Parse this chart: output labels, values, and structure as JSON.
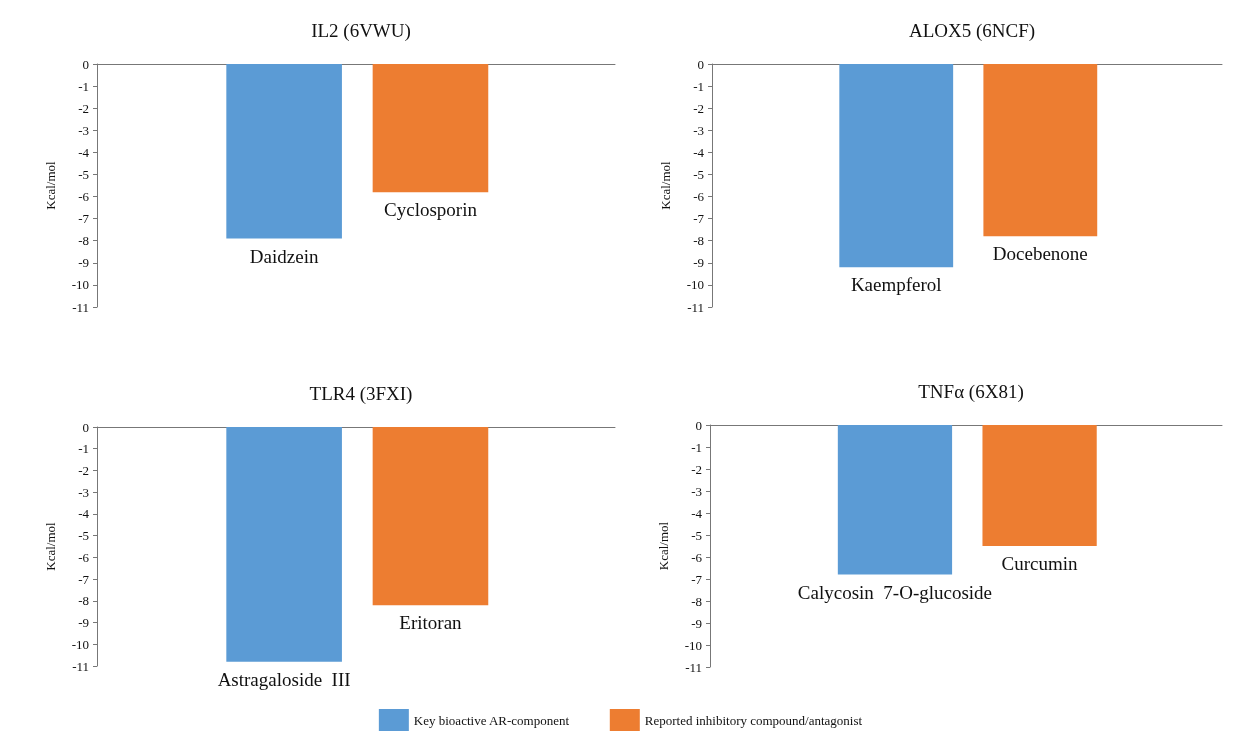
{
  "chart_data": [
    {
      "type": "bar",
      "title": "IL2 (6VWU)",
      "ylabel": "Kcal/mol",
      "categories": [
        "Daidzein",
        "Cyclosporin"
      ],
      "series": [
        {
          "color": "#5b9bd5",
          "values": [
            -7.9,
            null
          ]
        },
        {
          "color": "#ed7d31",
          "values": [
            null,
            -5.8
          ]
        }
      ],
      "ylim": [
        -11,
        0
      ],
      "yticks": [
        0,
        -1,
        -2,
        -3,
        -4,
        -5,
        -6,
        -7,
        -8,
        -9,
        -10,
        -11
      ],
      "tick_labels": "y",
      "grid": false,
      "legend": false
    },
    {
      "type": "bar",
      "title": "ALOX5 (6NCF)",
      "ylabel": "Kcal/mol",
      "categories": [
        "Kaempferol",
        "Docebenone"
      ],
      "series": [
        {
          "color": "#5b9bd5",
          "values": [
            -9.2,
            null
          ]
        },
        {
          "color": "#ed7d31",
          "values": [
            null,
            -7.8
          ]
        }
      ],
      "ylim": [
        -11,
        0
      ],
      "yticks": [
        0,
        -1,
        -2,
        -3,
        -4,
        -5,
        -6,
        -7,
        -8,
        -9,
        -10,
        -11
      ],
      "tick_labels": "y",
      "grid": false,
      "legend": false
    },
    {
      "type": "bar",
      "title": "TLR4 (3FXI)",
      "ylabel": "Kcal/mol",
      "categories": [
        "Astragaloside  III",
        "Eritoran"
      ],
      "series": [
        {
          "color": "#5b9bd5",
          "values": [
            -10.8,
            null
          ]
        },
        {
          "color": "#ed7d31",
          "values": [
            null,
            -8.2
          ]
        }
      ],
      "ylim": [
        -11,
        0
      ],
      "yticks": [
        0,
        -1,
        -2,
        -3,
        -4,
        -5,
        -6,
        -7,
        -8,
        -9,
        -10,
        -11
      ],
      "tick_labels": "y",
      "grid": false,
      "legend": false
    },
    {
      "type": "bar",
      "title": "TNFα (6X81)",
      "ylabel": "Kcal/mol",
      "categories": [
        "Calycosin  7-O-glucoside",
        "Curcumin"
      ],
      "series": [
        {
          "name": "Key bioactive AR-component",
          "color": "#5b9bd5",
          "values": [
            -6.8,
            null
          ]
        },
        {
          "name": "Reported inhibitory compound/antagonist",
          "color": "#ed7d31",
          "values": [
            null,
            -5.5
          ]
        }
      ],
      "ylim": [
        -11,
        0
      ],
      "yticks": [
        0,
        -1,
        -2,
        -3,
        -4,
        -5,
        -6,
        -7,
        -8,
        -9,
        -10,
        -11
      ],
      "tick_labels": "y",
      "grid": false,
      "legend": "bottom"
    }
  ]
}
